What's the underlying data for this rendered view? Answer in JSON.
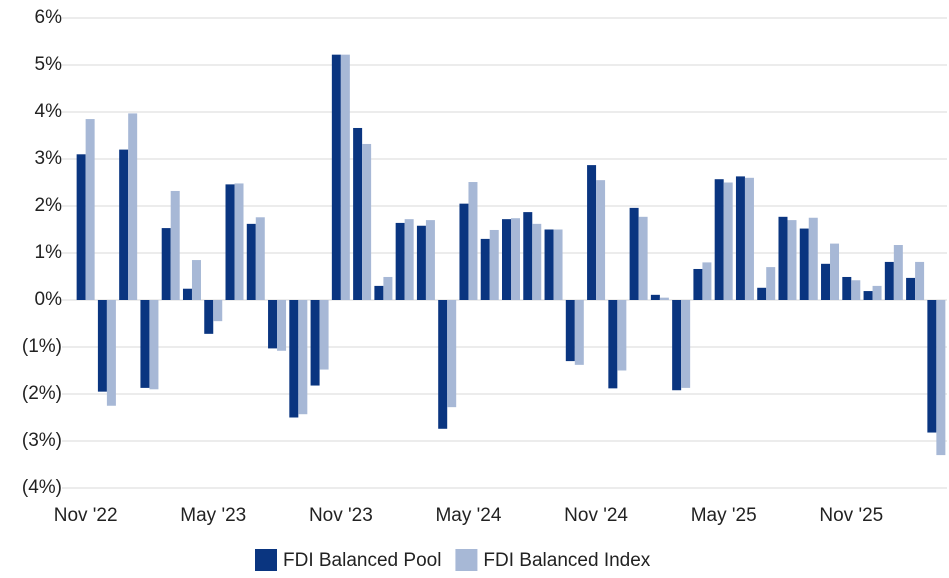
{
  "chart_data": {
    "type": "bar",
    "categories": [
      "Nov '22",
      null,
      null,
      null,
      null,
      null,
      "May '23",
      null,
      null,
      null,
      null,
      null,
      "Nov '23",
      null,
      null,
      null,
      null,
      null,
      "May '24",
      null,
      null,
      null,
      null,
      null,
      "Nov '24",
      null,
      null,
      null,
      null,
      null,
      "May '25",
      null,
      null,
      null,
      null,
      null,
      "Nov '25",
      null,
      null,
      null,
      null
    ],
    "series": [
      {
        "name": "FDI Balanced Pool",
        "color": "#0a3580",
        "values": [
          3.1,
          -1.95,
          3.2,
          -1.87,
          1.53,
          0.24,
          -0.72,
          2.46,
          1.62,
          -1.03,
          -2.5,
          -1.82,
          5.22,
          3.66,
          0.3,
          1.64,
          1.58,
          -2.74,
          2.05,
          1.3,
          1.72,
          1.87,
          1.5,
          -1.3,
          2.87,
          -1.88,
          1.96,
          0.11,
          -1.92,
          0.66,
          2.57,
          2.63,
          0.26,
          1.77,
          1.52,
          0.77,
          0.49,
          0.19,
          0.81,
          0.47,
          -2.82
        ]
      },
      {
        "name": "FDI Balanced Index",
        "color": "#a7b8d6",
        "values": [
          3.85,
          -2.25,
          3.97,
          -1.9,
          2.32,
          0.85,
          -0.45,
          2.48,
          1.76,
          -1.08,
          -2.43,
          -1.48,
          5.22,
          3.32,
          0.49,
          1.72,
          1.7,
          -2.28,
          2.51,
          1.49,
          1.74,
          1.62,
          1.5,
          -1.38,
          2.55,
          -1.5,
          1.77,
          0.05,
          -1.87,
          0.8,
          2.5,
          2.6,
          0.7,
          1.7,
          1.75,
          1.2,
          0.42,
          0.3,
          1.17,
          0.81,
          -3.3
        ]
      }
    ],
    "ylim": [
      -4,
      6
    ],
    "yticks": [
      {
        "value": 6,
        "label": "6%"
      },
      {
        "value": 5,
        "label": "5%"
      },
      {
        "value": 4,
        "label": "4%"
      },
      {
        "value": 3,
        "label": "3%"
      },
      {
        "value": 2,
        "label": "2%"
      },
      {
        "value": 1,
        "label": "1%"
      },
      {
        "value": 0,
        "label": "0%"
      },
      {
        "value": -1,
        "label": "(1%)"
      },
      {
        "value": -2,
        "label": "(2%)"
      },
      {
        "value": -3,
        "label": "(3%)"
      },
      {
        "value": -4,
        "label": "(4%)"
      }
    ],
    "grid": true,
    "legend": "bottom"
  }
}
